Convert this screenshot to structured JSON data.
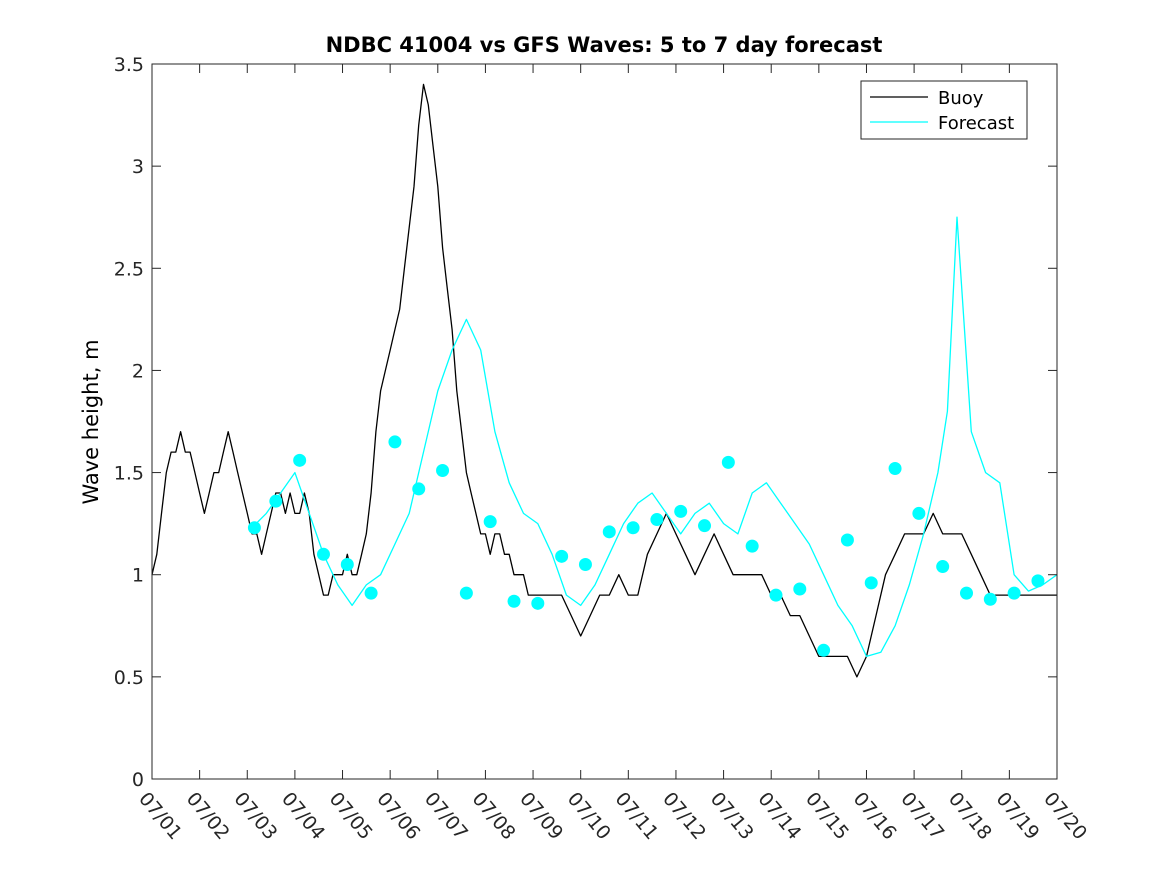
{
  "chart_data": {
    "type": "line",
    "title": "NDBC 41004 vs GFS Waves: 5 to 7 day forecast",
    "xlabel": "",
    "ylabel": "Wave height, m",
    "x_unit": "days since 07/01",
    "xlim": [
      0,
      19
    ],
    "ylim": [
      0,
      3.5
    ],
    "x_ticks": [
      0,
      1,
      2,
      3,
      4,
      5,
      6,
      7,
      8,
      9,
      10,
      11,
      12,
      13,
      14,
      15,
      16,
      17,
      18,
      19
    ],
    "x_tick_labels": [
      "07/01",
      "07/02",
      "07/03",
      "07/04",
      "07/05",
      "07/06",
      "07/07",
      "07/08",
      "07/09",
      "07/10",
      "07/11",
      "07/12",
      "07/13",
      "07/14",
      "07/15",
      "07/16",
      "07/17",
      "07/18",
      "07/19",
      "07/20"
    ],
    "y_ticks": [
      0,
      0.5,
      1,
      1.5,
      2,
      2.5,
      3,
      3.5
    ],
    "y_tick_labels": [
      "0",
      "0.5",
      "1",
      "1.5",
      "2",
      "2.5",
      "3",
      "3.5"
    ],
    "grid": false,
    "legend": {
      "position": "top-right",
      "entries": [
        "Buoy",
        "Forecast"
      ]
    },
    "colors": {
      "buoy": "#000000",
      "forecast": "#00ffff",
      "axis": "#262626"
    },
    "series": [
      {
        "name": "Buoy",
        "x": [
          0,
          0.1,
          0.2,
          0.3,
          0.4,
          0.5,
          0.6,
          0.7,
          0.8,
          0.9,
          1.0,
          1.1,
          1.2,
          1.3,
          1.4,
          1.5,
          1.6,
          1.7,
          1.8,
          1.9,
          2.0,
          2.1,
          2.2,
          2.3,
          2.4,
          2.5,
          2.6,
          2.7,
          2.8,
          2.9,
          3.0,
          3.1,
          3.2,
          3.3,
          3.4,
          3.5,
          3.6,
          3.7,
          3.8,
          3.9,
          4.0,
          4.1,
          4.2,
          4.3,
          4.4,
          4.5,
          4.6,
          4.7,
          4.8,
          4.9,
          5.0,
          5.1,
          5.2,
          5.3,
          5.4,
          5.5,
          5.6,
          5.7,
          5.8,
          5.9,
          6.0,
          6.1,
          6.2,
          6.3,
          6.4,
          6.5,
          6.6,
          6.7,
          6.8,
          6.9,
          7.0,
          7.1,
          7.2,
          7.3,
          7.4,
          7.5,
          7.6,
          7.7,
          7.8,
          7.9,
          8.0,
          8.2,
          8.4,
          8.6,
          8.8,
          9.0,
          9.2,
          9.4,
          9.6,
          9.8,
          10.0,
          10.2,
          10.4,
          10.6,
          10.8,
          11.0,
          11.2,
          11.4,
          11.6,
          11.8,
          12.0,
          12.2,
          12.4,
          12.6,
          12.8,
          13.0,
          13.2,
          13.4,
          13.6,
          13.8,
          14.0,
          14.2,
          14.4,
          14.6,
          14.8,
          15.0,
          15.2,
          15.4,
          15.6,
          15.8,
          16.0,
          16.2,
          16.4,
          16.6,
          16.8,
          17.0,
          17.2,
          17.4,
          17.6,
          17.8,
          18.0,
          18.2,
          18.4,
          18.6,
          18.8,
          19.0
        ],
        "values": [
          1.0,
          1.1,
          1.3,
          1.5,
          1.6,
          1.6,
          1.7,
          1.6,
          1.6,
          1.5,
          1.4,
          1.3,
          1.4,
          1.5,
          1.5,
          1.6,
          1.7,
          1.6,
          1.5,
          1.4,
          1.3,
          1.2,
          1.2,
          1.1,
          1.2,
          1.3,
          1.4,
          1.4,
          1.3,
          1.4,
          1.3,
          1.3,
          1.4,
          1.3,
          1.1,
          1.0,
          0.9,
          0.9,
          1.0,
          1.0,
          1.0,
          1.1,
          1.0,
          1.0,
          1.1,
          1.2,
          1.4,
          1.7,
          1.9,
          2.0,
          2.1,
          2.2,
          2.3,
          2.5,
          2.7,
          2.9,
          3.2,
          3.4,
          3.3,
          3.1,
          2.9,
          2.6,
          2.4,
          2.2,
          1.9,
          1.7,
          1.5,
          1.4,
          1.3,
          1.2,
          1.2,
          1.1,
          1.2,
          1.2,
          1.1,
          1.1,
          1.0,
          1.0,
          1.0,
          0.9,
          0.9,
          0.9,
          0.9,
          0.9,
          0.8,
          0.7,
          0.8,
          0.9,
          0.9,
          1.0,
          0.9,
          0.9,
          1.1,
          1.2,
          1.3,
          1.2,
          1.1,
          1.0,
          1.1,
          1.2,
          1.1,
          1.0,
          1.0,
          1.0,
          1.0,
          0.9,
          0.9,
          0.8,
          0.8,
          0.7,
          0.6,
          0.6,
          0.6,
          0.6,
          0.5,
          0.6,
          0.8,
          1.0,
          1.1,
          1.2,
          1.2,
          1.2,
          1.3,
          1.2,
          1.2,
          1.2,
          1.1,
          1.0,
          0.9,
          0.9,
          0.9,
          0.9,
          0.9,
          0.9,
          0.9,
          0.9
        ]
      },
      {
        "name": "Forecast",
        "x": [
          2.1,
          2.4,
          2.7,
          3.0,
          3.3,
          3.6,
          3.9,
          4.2,
          4.5,
          4.8,
          5.1,
          5.4,
          5.7,
          6.0,
          6.3,
          6.6,
          6.9,
          7.2,
          7.5,
          7.8,
          8.1,
          8.4,
          8.7,
          9.0,
          9.3,
          9.6,
          9.9,
          10.2,
          10.5,
          10.8,
          11.1,
          11.4,
          11.7,
          12.0,
          12.3,
          12.6,
          12.9,
          13.2,
          13.5,
          13.8,
          14.1,
          14.4,
          14.7,
          15.0,
          15.3,
          15.6,
          15.9,
          16.2,
          16.5,
          16.7,
          16.9,
          17.2,
          17.5,
          17.8,
          18.1,
          18.4,
          18.7,
          19.0
        ],
        "values": [
          1.23,
          1.3,
          1.4,
          1.5,
          1.3,
          1.1,
          0.95,
          0.85,
          0.95,
          1.0,
          1.15,
          1.3,
          1.6,
          1.9,
          2.1,
          2.25,
          2.1,
          1.7,
          1.45,
          1.3,
          1.25,
          1.1,
          0.9,
          0.85,
          0.95,
          1.1,
          1.25,
          1.35,
          1.4,
          1.3,
          1.2,
          1.3,
          1.35,
          1.25,
          1.2,
          1.4,
          1.45,
          1.35,
          1.25,
          1.15,
          1.0,
          0.85,
          0.75,
          0.6,
          0.62,
          0.75,
          0.95,
          1.2,
          1.5,
          1.8,
          2.75,
          1.7,
          1.5,
          1.45,
          1.0,
          0.92,
          0.95,
          1.0
        ]
      }
    ],
    "forecast_markers": [
      [
        2.15,
        1.23
      ],
      [
        2.6,
        1.36
      ],
      [
        3.1,
        1.56
      ],
      [
        3.6,
        1.1
      ],
      [
        4.1,
        1.05
      ],
      [
        4.6,
        0.91
      ],
      [
        5.1,
        1.65
      ],
      [
        5.6,
        1.42
      ],
      [
        6.1,
        1.51
      ],
      [
        6.6,
        0.91
      ],
      [
        7.1,
        1.26
      ],
      [
        7.6,
        0.87
      ],
      [
        8.1,
        0.86
      ],
      [
        8.6,
        1.09
      ],
      [
        9.1,
        1.05
      ],
      [
        9.6,
        1.21
      ],
      [
        10.1,
        1.23
      ],
      [
        10.6,
        1.27
      ],
      [
        11.1,
        1.31
      ],
      [
        11.6,
        1.24
      ],
      [
        12.1,
        1.55
      ],
      [
        12.6,
        1.14
      ],
      [
        13.1,
        0.9
      ],
      [
        13.6,
        0.93
      ],
      [
        14.1,
        0.63
      ],
      [
        14.6,
        1.17
      ],
      [
        15.1,
        0.96
      ],
      [
        15.6,
        1.52
      ],
      [
        16.1,
        1.3
      ],
      [
        16.6,
        1.04
      ],
      [
        17.1,
        0.91
      ],
      [
        17.6,
        0.88
      ],
      [
        18.1,
        0.91
      ],
      [
        18.6,
        0.97
      ]
    ]
  }
}
